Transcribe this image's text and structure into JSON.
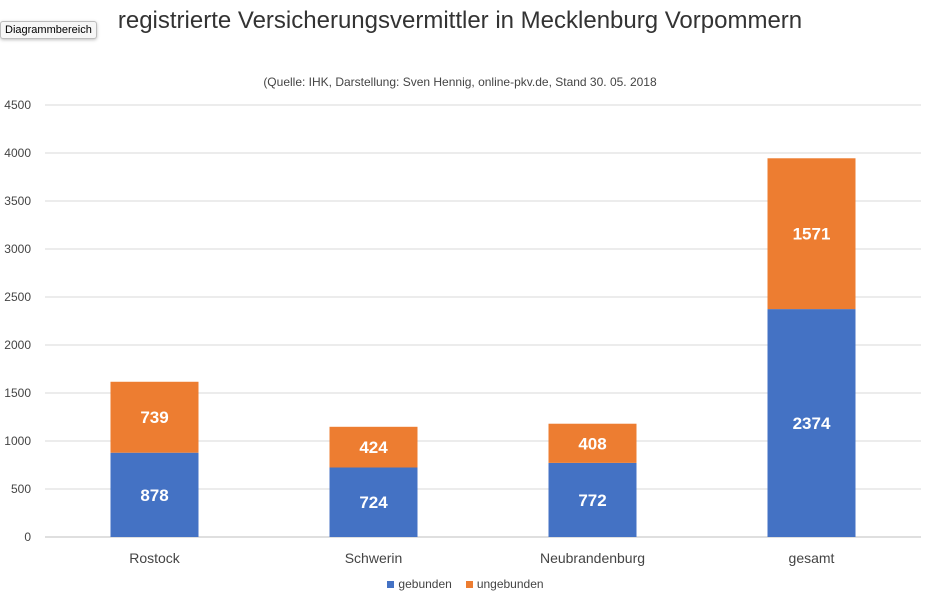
{
  "tooltip": "Diagrammbereich",
  "chart_data": {
    "type": "bar",
    "stacked": true,
    "title": "registrierte Versicherungsvermittler in Mecklenburg Vorpommern",
    "subtitle": "(Quelle: IHK, Darstellung: Sven Hennig, online-pkv.de, Stand 30. 05. 2018",
    "categories": [
      "Rostock",
      "Schwerin",
      "Neubrandenburg",
      "gesamt"
    ],
    "series": [
      {
        "name": "gebunden",
        "color": "#4472c4",
        "values": [
          878,
          724,
          772,
          2374
        ]
      },
      {
        "name": "ungebunden",
        "color": "#ed7d31",
        "values": [
          739,
          424,
          408,
          1571
        ]
      }
    ],
    "ylim": [
      0,
      4500
    ],
    "yticks": [
      0,
      500,
      1000,
      1500,
      2000,
      2500,
      3000,
      3500,
      4000,
      4500
    ],
    "grid": true,
    "legend_position": "bottom"
  }
}
